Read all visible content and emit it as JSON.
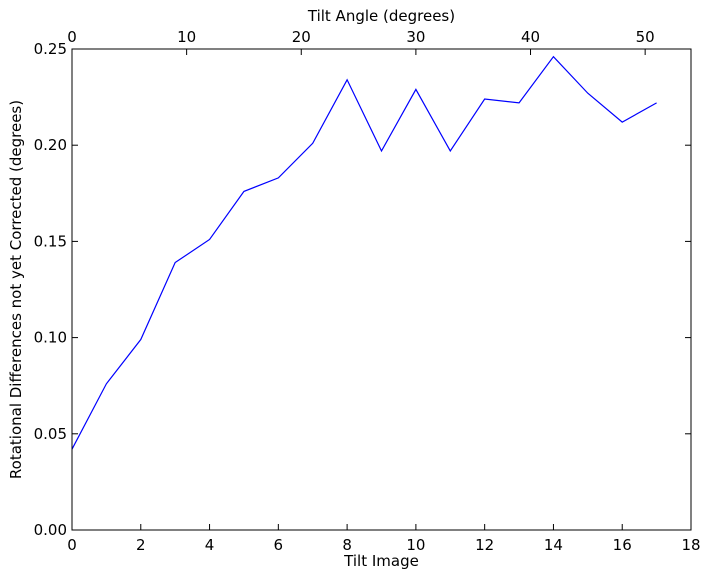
{
  "chart_data": {
    "type": "line",
    "title": "",
    "xlabel": "Tilt Image",
    "ylabel": "Rotational Differences not yet Corrected (degrees)",
    "top_xlabel": "Tilt Angle (degrees)",
    "xlim": [
      0,
      18
    ],
    "ylim": [
      0,
      0.25
    ],
    "top_xlim": [
      0,
      54
    ],
    "x_ticks": [
      0,
      2,
      4,
      6,
      8,
      10,
      12,
      14,
      16,
      18
    ],
    "y_ticks": [
      "0.00",
      "0.05",
      "0.10",
      "0.15",
      "0.20",
      "0.25"
    ],
    "top_x_ticks": [
      0,
      10,
      20,
      30,
      40,
      50
    ],
    "grid": false,
    "legend": "none",
    "series": [
      {
        "color": "#0000ff",
        "x": [
          0,
          1,
          2,
          3,
          4,
          5,
          6,
          7,
          8,
          9,
          10,
          11,
          12,
          13,
          14,
          15,
          16,
          17
        ],
        "y": [
          0.042,
          0.076,
          0.099,
          0.139,
          0.151,
          0.176,
          0.183,
          0.201,
          0.234,
          0.197,
          0.229,
          0.197,
          0.224,
          0.222,
          0.246,
          0.227,
          0.212,
          0.222
        ]
      }
    ]
  }
}
